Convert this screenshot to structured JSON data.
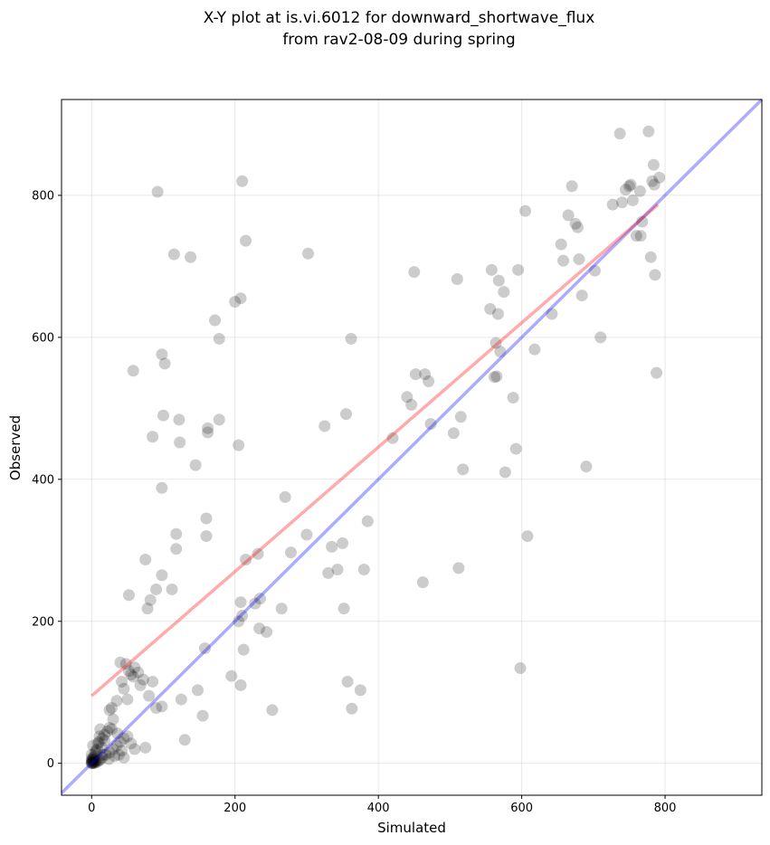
{
  "chart_data": {
    "type": "scatter",
    "title_line1": "X-Y plot at is.vi.6012 for downward_shortwave_flux",
    "title_line2": "from rav2-08-09 during spring",
    "xlabel": "Simulated",
    "ylabel": "Observed",
    "xlim": [
      -42,
      935
    ],
    "ylim": [
      -45,
      935
    ],
    "xticks": [
      0,
      200,
      400,
      600,
      800
    ],
    "yticks": [
      0,
      200,
      400,
      600,
      800
    ],
    "grid": true,
    "colors": {
      "points": "#000000",
      "identity_line": "#0000ff",
      "fit_line": "#ff0000"
    },
    "identity_line": {
      "x": [
        -42,
        935
      ],
      "y": [
        -42,
        935
      ]
    },
    "fit_line": {
      "x": [
        0,
        790
      ],
      "y": [
        95,
        787
      ]
    },
    "points": [
      [
        0,
        0
      ],
      [
        0,
        1
      ],
      [
        1,
        0
      ],
      [
        1,
        2
      ],
      [
        2,
        1
      ],
      [
        0,
        3
      ],
      [
        3,
        0
      ],
      [
        2,
        4
      ],
      [
        4,
        2
      ],
      [
        1,
        5
      ],
      [
        5,
        1
      ],
      [
        0,
        6
      ],
      [
        6,
        3
      ],
      [
        3,
        6
      ],
      [
        2,
        8
      ],
      [
        8,
        2
      ],
      [
        4,
        10
      ],
      [
        10,
        4
      ],
      [
        0,
        12
      ],
      [
        12,
        5
      ],
      [
        5,
        15
      ],
      [
        15,
        8
      ],
      [
        8,
        20
      ],
      [
        2,
        25
      ],
      [
        20,
        12
      ],
      [
        10,
        30
      ],
      [
        25,
        15
      ],
      [
        15,
        35
      ],
      [
        30,
        20
      ],
      [
        18,
        40
      ],
      [
        35,
        25
      ],
      [
        22,
        45
      ],
      [
        40,
        30
      ],
      [
        25,
        50
      ],
      [
        45,
        35
      ],
      [
        12,
        48
      ],
      [
        18,
        32
      ],
      [
        14,
        22
      ],
      [
        6,
        18
      ],
      [
        9,
        28
      ],
      [
        11,
        38
      ],
      [
        16,
        12
      ],
      [
        24,
        6
      ],
      [
        28,
        48
      ],
      [
        32,
        10
      ],
      [
        36,
        42
      ],
      [
        50,
        38
      ],
      [
        55,
        28
      ],
      [
        60,
        20
      ],
      [
        42,
        18
      ],
      [
        38,
        12
      ],
      [
        45,
        8
      ],
      [
        30,
        62
      ],
      [
        35,
        88
      ],
      [
        45,
        105
      ],
      [
        50,
        90
      ],
      [
        55,
        125
      ],
      [
        60,
        135
      ],
      [
        42,
        115
      ],
      [
        48,
        140
      ],
      [
        40,
        142
      ],
      [
        52,
        130
      ],
      [
        58,
        122
      ],
      [
        65,
        128
      ],
      [
        72,
        118
      ],
      [
        68,
        110
      ],
      [
        85,
        115
      ],
      [
        80,
        95
      ],
      [
        90,
        78
      ],
      [
        98,
        80
      ],
      [
        75,
        22
      ],
      [
        25,
        75
      ],
      [
        28,
        78
      ],
      [
        130,
        33
      ],
      [
        155,
        67
      ],
      [
        148,
        103
      ],
      [
        125,
        90
      ],
      [
        52,
        237
      ],
      [
        78,
        218
      ],
      [
        82,
        230
      ],
      [
        90,
        245
      ],
      [
        98,
        265
      ],
      [
        112,
        245
      ],
      [
        75,
        287
      ],
      [
        118,
        302
      ],
      [
        118,
        323
      ],
      [
        160,
        345
      ],
      [
        160,
        320
      ],
      [
        85,
        460
      ],
      [
        98,
        388
      ],
      [
        100,
        490
      ],
      [
        122,
        484
      ],
      [
        123,
        452
      ],
      [
        145,
        420
      ],
      [
        162,
        472
      ],
      [
        162,
        466
      ],
      [
        178,
        484
      ],
      [
        58,
        553
      ],
      [
        98,
        576
      ],
      [
        102,
        563
      ],
      [
        172,
        624
      ],
      [
        178,
        598
      ],
      [
        200,
        650
      ],
      [
        208,
        655
      ],
      [
        92,
        805
      ],
      [
        115,
        717
      ],
      [
        138,
        713
      ],
      [
        210,
        820
      ],
      [
        215,
        736
      ],
      [
        302,
        718
      ],
      [
        158,
        162
      ],
      [
        195,
        123
      ],
      [
        205,
        200
      ],
      [
        210,
        208
      ],
      [
        208,
        110
      ],
      [
        208,
        227
      ],
      [
        212,
        160
      ],
      [
        228,
        225
      ],
      [
        232,
        295
      ],
      [
        234,
        190
      ],
      [
        244,
        185
      ],
      [
        235,
        232
      ],
      [
        252,
        75
      ],
      [
        265,
        218
      ],
      [
        270,
        375
      ],
      [
        278,
        297
      ],
      [
        300,
        322
      ],
      [
        205,
        448
      ],
      [
        215,
        287
      ],
      [
        325,
        475
      ],
      [
        330,
        268
      ],
      [
        335,
        305
      ],
      [
        343,
        273
      ],
      [
        350,
        310
      ],
      [
        352,
        218
      ],
      [
        355,
        492
      ],
      [
        357,
        115
      ],
      [
        362,
        598
      ],
      [
        363,
        77
      ],
      [
        375,
        103
      ],
      [
        380,
        273
      ],
      [
        385,
        341
      ],
      [
        420,
        458
      ],
      [
        440,
        516
      ],
      [
        446,
        505
      ],
      [
        450,
        692
      ],
      [
        452,
        548
      ],
      [
        462,
        255
      ],
      [
        465,
        548
      ],
      [
        470,
        538
      ],
      [
        473,
        478
      ],
      [
        505,
        465
      ],
      [
        510,
        682
      ],
      [
        512,
        275
      ],
      [
        515,
        488
      ],
      [
        518,
        414
      ],
      [
        556,
        640
      ],
      [
        558,
        695
      ],
      [
        562,
        544
      ],
      [
        564,
        592
      ],
      [
        565,
        545
      ],
      [
        567,
        633
      ],
      [
        568,
        680
      ],
      [
        570,
        580
      ],
      [
        575,
        664
      ],
      [
        577,
        410
      ],
      [
        588,
        515
      ],
      [
        592,
        443
      ],
      [
        595,
        695
      ],
      [
        598,
        134
      ],
      [
        605,
        778
      ],
      [
        608,
        320
      ],
      [
        618,
        583
      ],
      [
        642,
        633
      ],
      [
        655,
        731
      ],
      [
        658,
        708
      ],
      [
        665,
        772
      ],
      [
        670,
        813
      ],
      [
        675,
        760
      ],
      [
        678,
        755
      ],
      [
        680,
        710
      ],
      [
        684,
        659
      ],
      [
        690,
        418
      ],
      [
        702,
        694
      ],
      [
        710,
        600
      ],
      [
        727,
        787
      ],
      [
        737,
        887
      ],
      [
        740,
        790
      ],
      [
        745,
        808
      ],
      [
        750,
        813
      ],
      [
        752,
        815
      ],
      [
        755,
        793
      ],
      [
        760,
        743
      ],
      [
        765,
        806
      ],
      [
        766,
        743
      ],
      [
        768,
        763
      ],
      [
        777,
        890
      ],
      [
        780,
        713
      ],
      [
        782,
        820
      ],
      [
        784,
        843
      ],
      [
        785,
        815
      ],
      [
        786,
        688
      ],
      [
        788,
        550
      ],
      [
        792,
        825
      ]
    ]
  }
}
